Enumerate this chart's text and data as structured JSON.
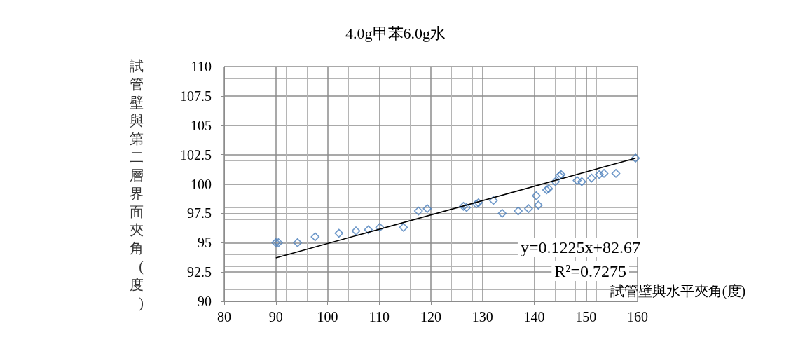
{
  "chart_data": {
    "type": "scatter",
    "title": "4.0g甲苯6.0g水",
    "xlabel": "試管壁與水平夾角(度)",
    "ylabel": "試管壁與第二層界面夾角(度)",
    "annotations": [
      "y=0.1225x+82.67",
      "R²=0.7275"
    ],
    "xlim": [
      80,
      160
    ],
    "xticks": [
      80,
      90,
      100,
      110,
      120,
      130,
      140,
      150,
      160
    ],
    "ylim": [
      90,
      110
    ],
    "yticks": [
      90,
      92.5,
      95,
      97.5,
      100,
      102.5,
      105,
      107.5,
      110
    ],
    "grid": true,
    "marker": "diamond",
    "series": [
      {
        "color": "#4a7ebb",
        "x": [
          90,
          90.5,
          94.2,
          97.6,
          102.2,
          105.5,
          107.9,
          110.1,
          114.7,
          117.6,
          119.3,
          126.3,
          126.9,
          128.8,
          129.2,
          132.1,
          133.8,
          136.9,
          138.9,
          140.4,
          140.8,
          142.4,
          142.8,
          144.1,
          144.9,
          145.2,
          148.3,
          149.2,
          151.1,
          152.6,
          153.5,
          155.8,
          159.6
        ],
        "values": [
          95,
          95,
          95,
          95.5,
          95.8,
          96,
          96.1,
          96.3,
          96.3,
          97.7,
          97.9,
          98.1,
          98,
          98.3,
          98.4,
          98.6,
          97.5,
          97.7,
          97.9,
          99,
          98.2,
          99.5,
          99.6,
          100.2,
          100.7,
          100.8,
          100.3,
          100.2,
          100.5,
          100.8,
          100.9,
          100.9,
          102.2
        ]
      },
      {
        "type": "line",
        "color": "#000000",
        "marker": "none",
        "x": [
          90,
          159.6
        ],
        "values": [
          93.7,
          102.2
        ]
      }
    ]
  }
}
